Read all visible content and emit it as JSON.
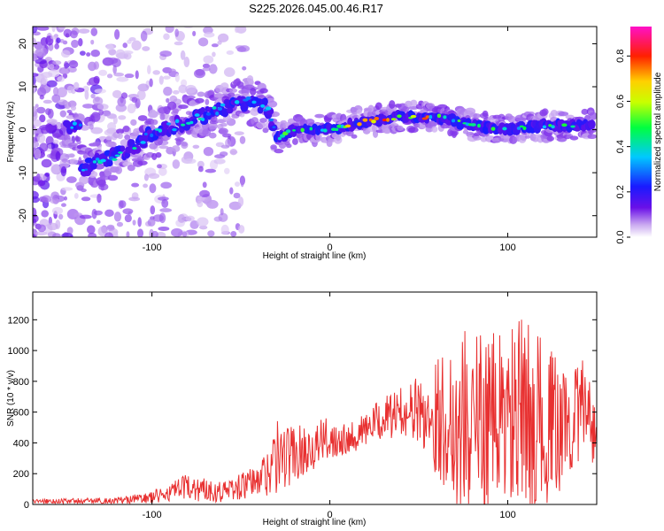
{
  "title": "S225.2026.045.00.46.R17",
  "chart_data": [
    {
      "type": "heatmap",
      "name": "spectrogram",
      "xlabel": "Height of straight line (km)",
      "ylabel": "Frequency (Hz)",
      "xlim": [
        -167,
        150
      ],
      "ylim": [
        -25,
        24
      ],
      "xticks": [
        -100,
        0,
        100
      ],
      "yticks": [
        -20,
        -10,
        0,
        10,
        20
      ],
      "colorbar": {
        "label": "Normalized spectral amplitude",
        "range": [
          0,
          0.93
        ],
        "ticks": [
          "0.0",
          "0.2",
          "0.4",
          "0.6",
          "0.8"
        ],
        "tick_values": [
          0.0,
          0.2,
          0.4,
          0.6,
          0.8
        ]
      },
      "ridge": [
        {
          "x": -140,
          "f": -9
        },
        {
          "x": -120,
          "f": -6
        },
        {
          "x": -100,
          "f": -1
        },
        {
          "x": -80,
          "f": 2
        },
        {
          "x": -60,
          "f": 5
        },
        {
          "x": -45,
          "f": 7
        },
        {
          "x": -35,
          "f": 5
        },
        {
          "x": -30,
          "f": -2
        },
        {
          "x": -20,
          "f": 0
        },
        {
          "x": 0,
          "f": 0
        },
        {
          "x": 20,
          "f": 2
        },
        {
          "x": 40,
          "f": 3
        },
        {
          "x": 60,
          "f": 3
        },
        {
          "x": 80,
          "f": 1
        },
        {
          "x": 100,
          "f": 0
        },
        {
          "x": 120,
          "f": 1
        },
        {
          "x": 148,
          "f": 1
        }
      ]
    },
    {
      "type": "line",
      "name": "snr",
      "xlabel": "Height of straight line (km)",
      "ylabel": "SNR (10 * v/v)",
      "xlim": [
        -167,
        150
      ],
      "ylim": [
        0,
        1380
      ],
      "xticks": [
        -100,
        0,
        100
      ],
      "yticks": [
        0,
        200,
        400,
        600,
        800,
        1000,
        1200
      ],
      "color": "#e83030",
      "envelope": [
        {
          "x": -167,
          "base": 20,
          "amp": 15
        },
        {
          "x": -120,
          "base": 25,
          "amp": 20
        },
        {
          "x": -100,
          "base": 45,
          "amp": 40
        },
        {
          "x": -80,
          "base": 110,
          "amp": 90
        },
        {
          "x": -60,
          "base": 85,
          "amp": 70
        },
        {
          "x": -40,
          "base": 150,
          "amp": 110
        },
        {
          "x": -30,
          "base": 300,
          "amp": 250
        },
        {
          "x": -15,
          "base": 350,
          "amp": 160
        },
        {
          "x": 0,
          "base": 430,
          "amp": 140
        },
        {
          "x": 15,
          "base": 450,
          "amp": 100
        },
        {
          "x": 30,
          "base": 560,
          "amp": 140
        },
        {
          "x": 45,
          "base": 620,
          "amp": 170
        },
        {
          "x": 60,
          "base": 570,
          "amp": 380
        },
        {
          "x": 75,
          "base": 520,
          "amp": 650
        },
        {
          "x": 90,
          "base": 550,
          "amp": 560
        },
        {
          "x": 110,
          "base": 560,
          "amp": 660
        },
        {
          "x": 130,
          "base": 500,
          "amp": 420
        },
        {
          "x": 145,
          "base": 650,
          "amp": 300
        },
        {
          "x": 150,
          "base": 400,
          "amp": 350
        }
      ]
    }
  ]
}
